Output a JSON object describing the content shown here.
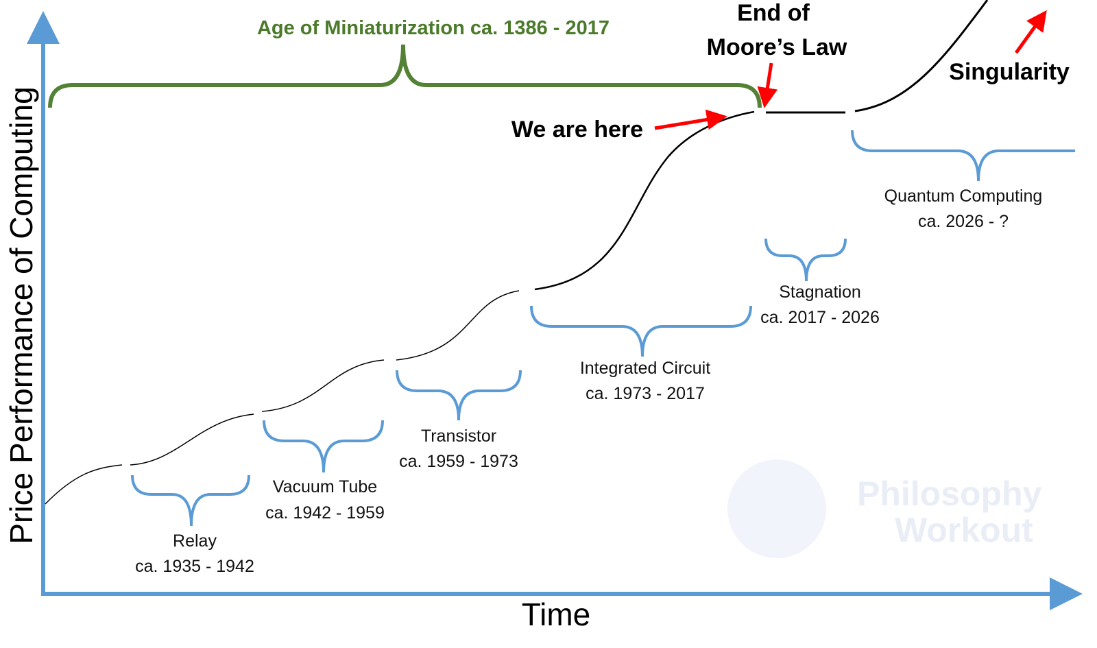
{
  "axes": {
    "y_label": "Price Performance of Computing",
    "x_label": "Time",
    "axis_color": "#5b9bd5"
  },
  "age": {
    "label": "Age of Miniaturization ca. 1386 - 2017",
    "color": "#548235"
  },
  "eras": [
    {
      "name": "Relay",
      "years": "ca. 1935 - 1942"
    },
    {
      "name": "Vacuum Tube",
      "years": "ca. 1942 - 1959"
    },
    {
      "name": "Transistor",
      "years": "ca. 1959 - 1973"
    },
    {
      "name": "Integrated Circuit",
      "years": "ca. 1973 - 2017"
    },
    {
      "name": "Stagnation",
      "years": "ca. 2017 - 2026"
    },
    {
      "name": "Quantum Computing",
      "years": "ca. 2026 - ?"
    }
  ],
  "annotations": {
    "we_are_here": "We are here",
    "end_line1": "End of",
    "end_line2": "Moore’s Law",
    "singularity": "Singularity",
    "arrow_color": "#ff0000"
  },
  "watermark": {
    "line1": "Philosophy",
    "line2": "Workout"
  },
  "brace_color": "#5b9bd5"
}
